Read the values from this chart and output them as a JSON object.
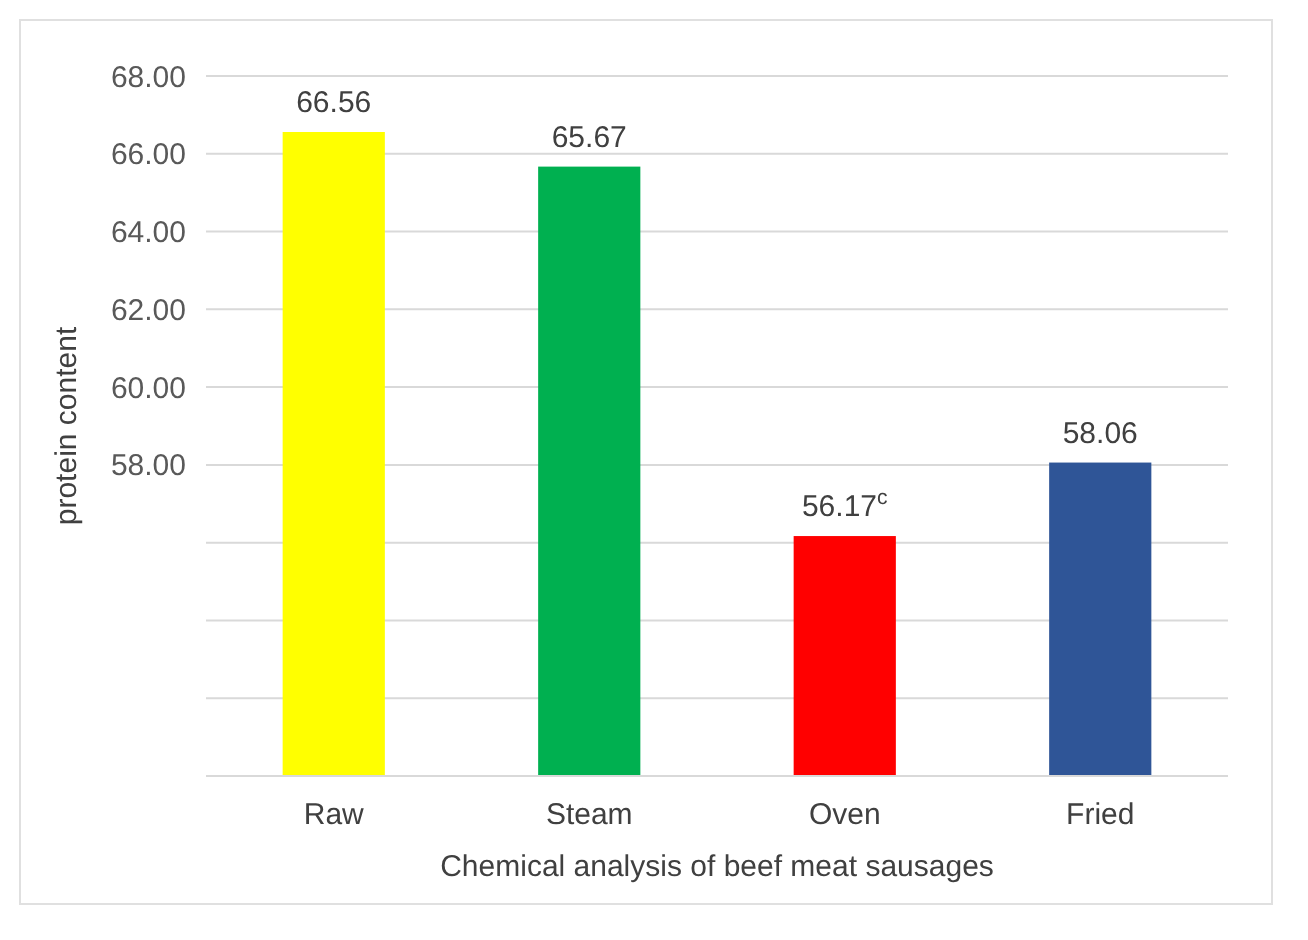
{
  "chart_data": {
    "type": "bar",
    "xlabel": "Chemical analysis of beef meat sausages",
    "ylabel": "protein content",
    "categories": [
      "Raw",
      "Steam",
      "Oven",
      "Fried"
    ],
    "values": [
      66.56,
      65.67,
      56.17,
      58.06
    ],
    "colors": [
      "#ffff00",
      "#00b050",
      "#ff0000",
      "#2f5597"
    ],
    "value_labels": [
      "66.56",
      "65.67",
      "56.17$^{c}$",
      "58.06"
    ],
    "ylim": [
      50,
      68
    ],
    "yticks": [
      {
        "value": 50,
        "label": null
      },
      {
        "value": 52,
        "label": null
      },
      {
        "value": 54,
        "label": null
      },
      {
        "value": 56,
        "label": null
      },
      {
        "value": 58,
        "label": "58.00"
      },
      {
        "value": 60,
        "label": "60.00"
      },
      {
        "value": 62,
        "label": "62.00"
      },
      {
        "value": 64,
        "label": "64.00"
      },
      {
        "value": 66,
        "label": "66.00"
      },
      {
        "value": 68,
        "label": "68.00"
      }
    ],
    "grid": "y"
  }
}
